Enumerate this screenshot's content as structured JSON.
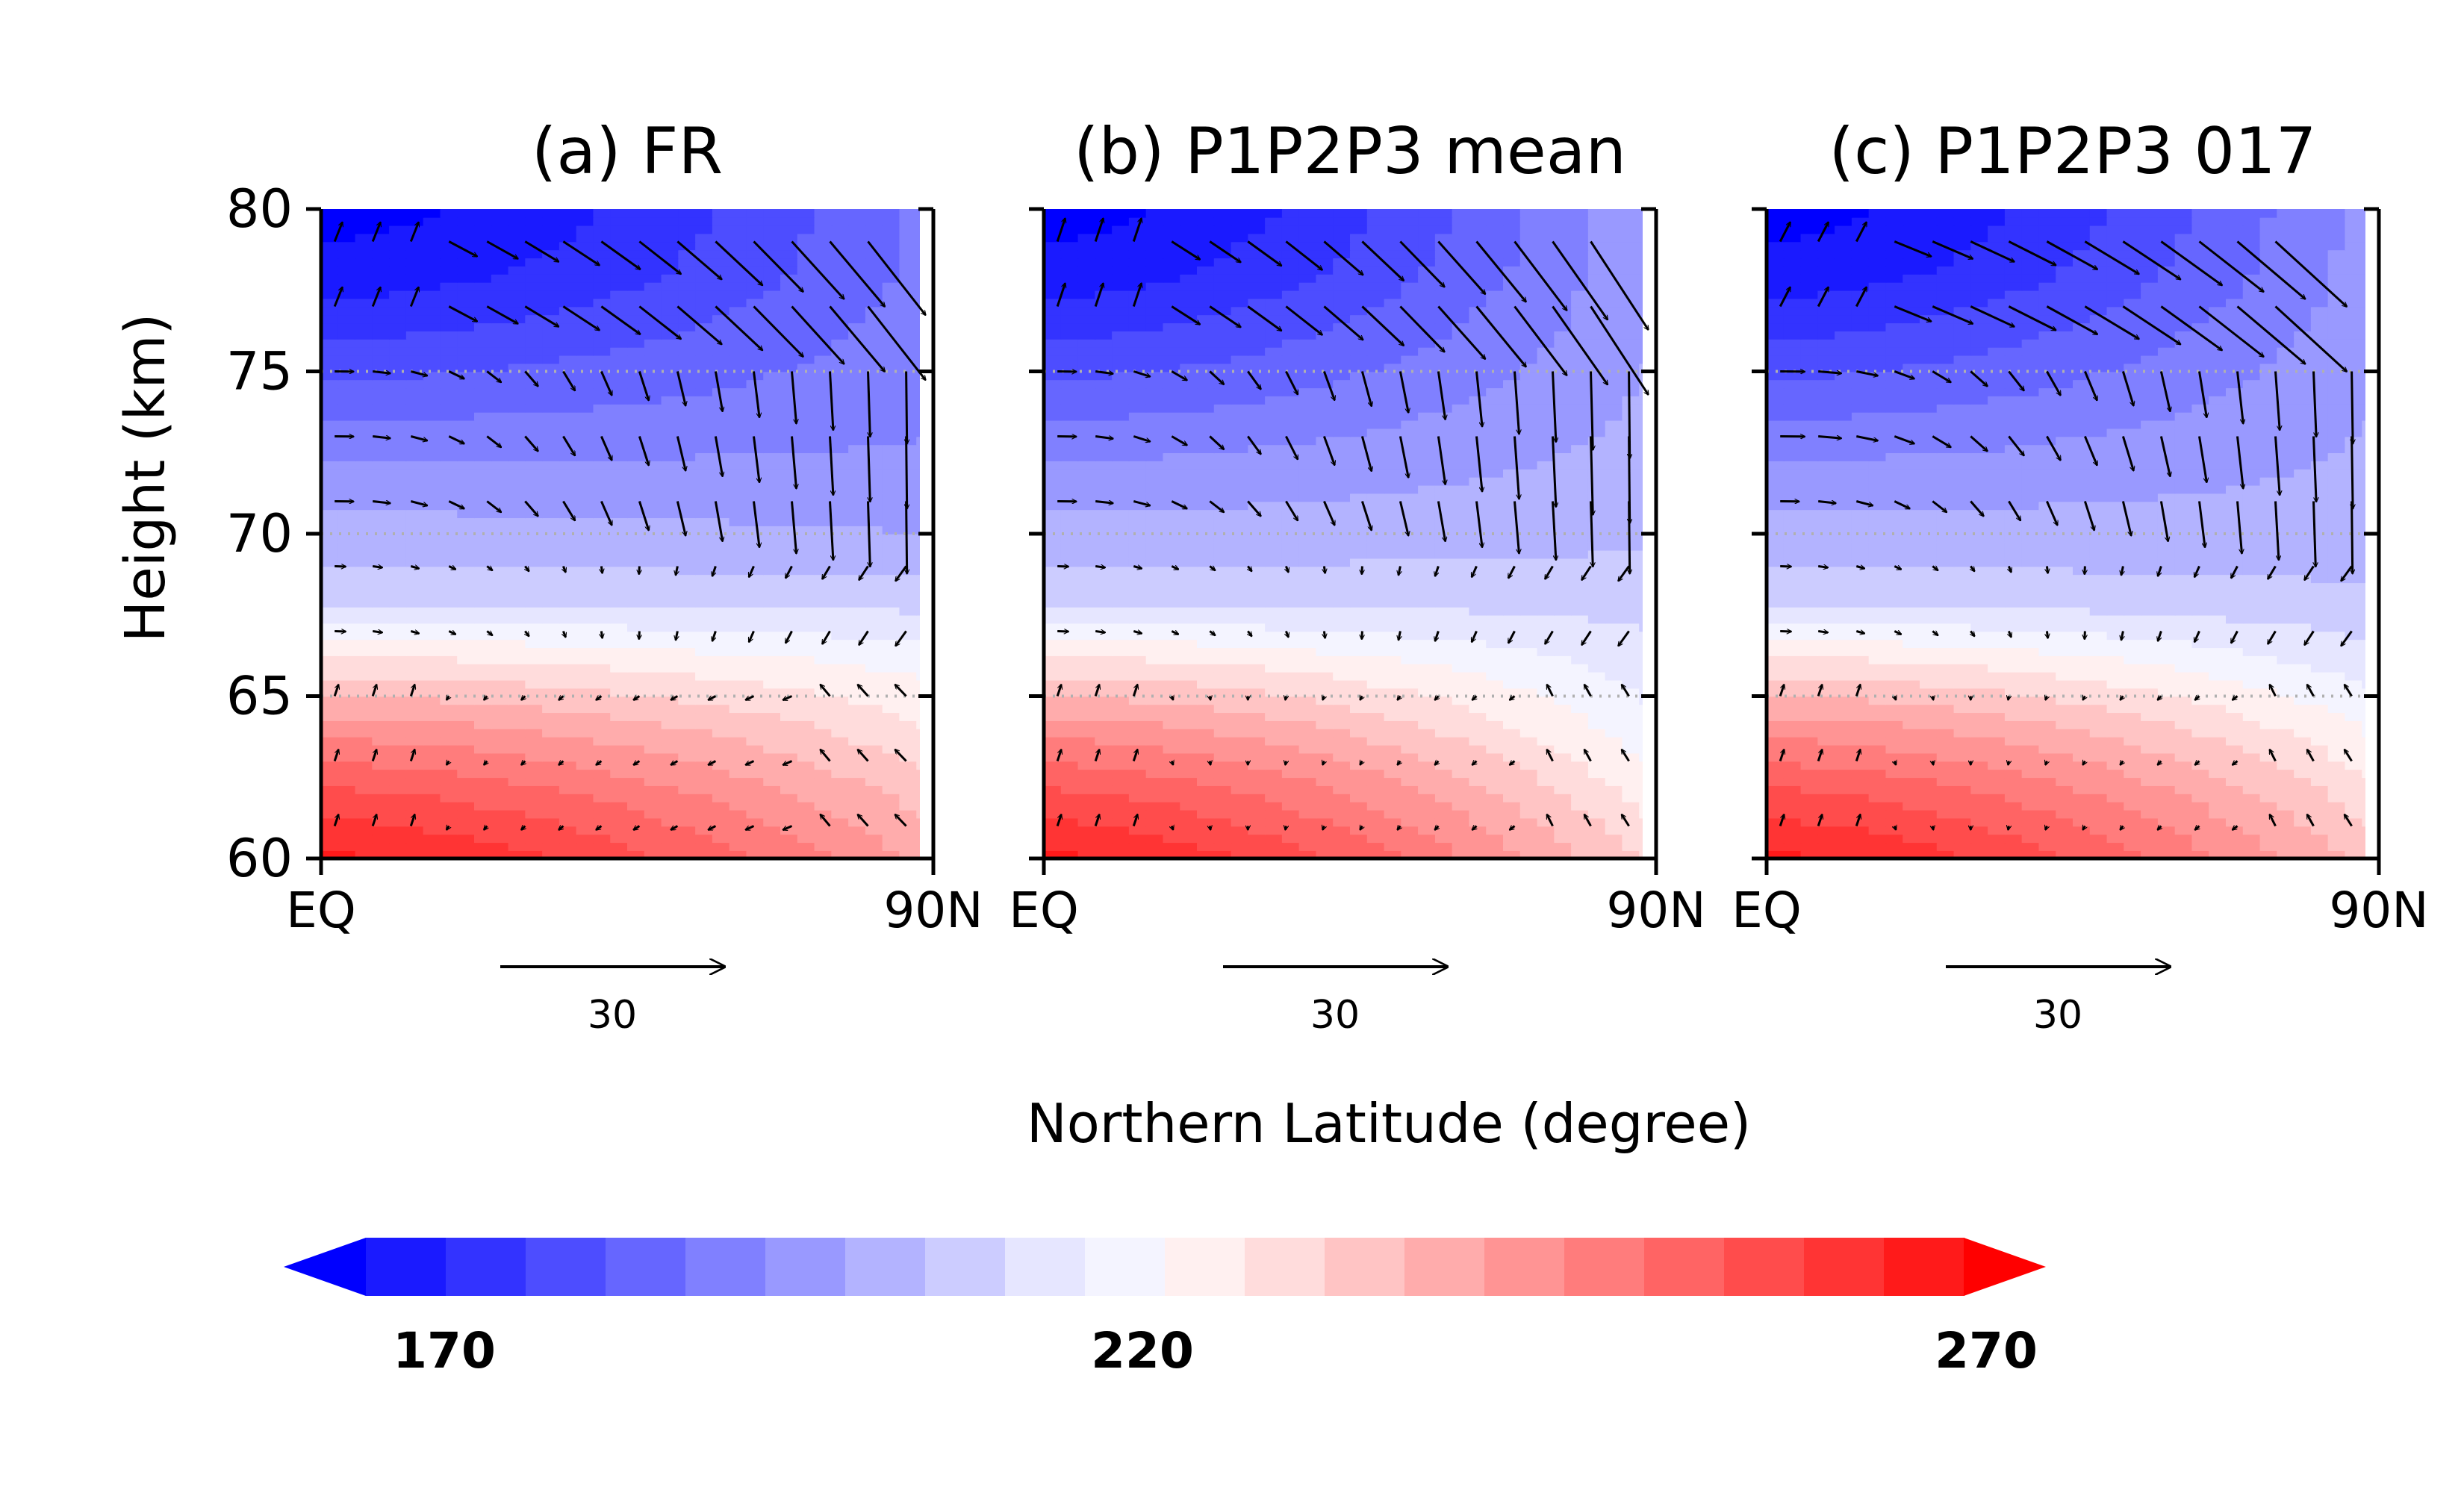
{
  "figure": {
    "xlabel": "Northern Latitude (degree)",
    "ylabel": "Height (km)",
    "colorbar": {
      "min": 170,
      "max": 270,
      "step": 5,
      "tick_labels": [
        "170",
        "220",
        "270"
      ],
      "colors": [
        "#0000ff",
        "#1a1aff",
        "#3333ff",
        "#4d4dff",
        "#6666ff",
        "#8080ff",
        "#9999ff",
        "#b3b3ff",
        "#ccccff",
        "#e6e6ff",
        "#f4f4ff",
        "#fff0f0",
        "#ffdcdc",
        "#ffc4c4",
        "#ffacac",
        "#ff9494",
        "#ff7c7c",
        "#ff6464",
        "#ff4c4c",
        "#ff3434",
        "#ff1a1a",
        "#ff0000"
      ]
    },
    "reference_vector": {
      "label": "30",
      "magnitude": 30
    }
  },
  "chart_data": [
    {
      "type": "heatmap",
      "title": "(a) FR",
      "x_tick_labels": [
        "EQ",
        "90N"
      ],
      "xlim": [
        0,
        90
      ],
      "ylim": [
        60,
        80
      ],
      "y_ticks": [
        60,
        65,
        70,
        75,
        80
      ],
      "y_tick_labels": [
        "60",
        "65",
        "70",
        "75",
        "80"
      ],
      "dotted_levels": [
        65,
        70,
        75
      ],
      "temperature_profile_K": {
        "height_km": [
          60,
          62,
          64,
          66,
          68,
          70,
          72,
          74,
          76,
          78,
          80
        ],
        "equator": [
          266,
          256,
          243,
          227,
          208,
          202,
          196,
          188,
          180,
          172,
          168
        ],
        "pole": [
          238,
          232,
          225,
          218,
          208,
          200,
          196,
          194,
          193,
          192,
          192
        ]
      },
      "wind_field": "low-level flow southward/weak, strong descending arrows poleward of 50N above 70 km"
    },
    {
      "type": "heatmap",
      "title": "(b) P1P2P3 mean",
      "x_tick_labels": [
        "EQ",
        "90N"
      ],
      "xlim": [
        0,
        90
      ],
      "ylim": [
        60,
        80
      ],
      "y_ticks": [
        60,
        65,
        70,
        75,
        80
      ],
      "dotted_levels": [
        65,
        70,
        75
      ],
      "temperature_profile_K": {
        "height_km": [
          60,
          62,
          64,
          66,
          68,
          70,
          72,
          74,
          76,
          78,
          80
        ],
        "equator": [
          266,
          256,
          243,
          227,
          208,
          202,
          196,
          188,
          180,
          172,
          168
        ],
        "pole": [
          228,
          222,
          216,
          212,
          208,
          204,
          202,
          201,
          200,
          200,
          200
        ]
      },
      "wind_field": "strong poleward/downward arrows above 72 km near 60-90N, long vector near 63 km at 70N"
    },
    {
      "type": "heatmap",
      "title": "(c) P1P2P3 017",
      "x_tick_labels": [
        "EQ",
        "90N"
      ],
      "xlim": [
        0,
        90
      ],
      "ylim": [
        60,
        80
      ],
      "y_ticks": [
        60,
        65,
        70,
        75,
        80
      ],
      "dotted_levels": [
        65,
        70,
        75
      ],
      "temperature_profile_K": {
        "height_km": [
          60,
          62,
          64,
          66,
          68,
          70,
          72,
          74,
          76,
          78,
          80
        ],
        "equator": [
          266,
          256,
          243,
          227,
          208,
          202,
          196,
          188,
          180,
          172,
          168
        ],
        "pole": [
          232,
          226,
          219,
          212,
          206,
          202,
          201,
          200,
          199,
          198,
          198
        ]
      },
      "wind_field": "strong poleward arrows above 73 km, northward arrows near 61-63 km at high latitudes"
    }
  ]
}
